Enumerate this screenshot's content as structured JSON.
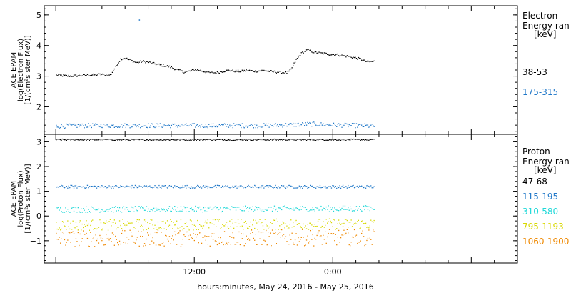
{
  "chart_data": [
    {
      "type": "scatter",
      "title": "",
      "ylabel_lines": [
        "ACE EPAM",
        "log(Electron Flux)",
        "[1/(cm²s ster MeV)]"
      ],
      "ylim": [
        1.1,
        5.3
      ],
      "yticks": [
        2,
        3,
        4,
        5
      ],
      "legend_title": [
        "Electron",
        "Energy ran",
        "[keV]"
      ],
      "series": [
        {
          "name": "38-53",
          "color": "#000000",
          "points": [
            [
              0,
              3.05
            ],
            [
              1,
              3.02
            ],
            [
              2,
              3.03
            ],
            [
              3,
              3.05
            ],
            [
              4,
              3.07
            ],
            [
              4.7,
              3.05
            ],
            [
              5.2,
              3.35
            ],
            [
              5.6,
              3.58
            ],
            [
              6.0,
              3.6
            ],
            [
              6.5,
              3.52
            ],
            [
              7,
              3.45
            ],
            [
              7.5,
              3.5
            ],
            [
              8,
              3.47
            ],
            [
              8.5,
              3.42
            ],
            [
              9,
              3.38
            ],
            [
              9.5,
              3.35
            ],
            [
              10,
              3.3
            ],
            [
              10.5,
              3.22
            ],
            [
              11,
              3.15
            ],
            [
              11.5,
              3.17
            ],
            [
              12,
              3.22
            ],
            [
              12.5,
              3.2
            ],
            [
              13,
              3.15
            ],
            [
              13.5,
              3.12
            ],
            [
              14,
              3.13
            ],
            [
              14.5,
              3.18
            ],
            [
              15,
              3.2
            ],
            [
              15.5,
              3.18
            ],
            [
              16,
              3.17
            ],
            [
              16.5,
              3.2
            ],
            [
              17,
              3.18
            ],
            [
              17.5,
              3.18
            ],
            [
              18,
              3.2
            ],
            [
              18.5,
              3.17
            ],
            [
              19,
              3.15
            ],
            [
              19.5,
              3.14
            ],
            [
              20,
              3.12
            ],
            [
              20.3,
              3.2
            ],
            [
              20.8,
              3.55
            ],
            [
              21.3,
              3.78
            ],
            [
              21.8,
              3.87
            ],
            [
              22.3,
              3.8
            ],
            [
              22.8,
              3.77
            ],
            [
              23.3,
              3.75
            ],
            [
              23.8,
              3.72
            ],
            [
              24.3,
              3.72
            ],
            [
              24.8,
              3.68
            ],
            [
              25.3,
              3.66
            ],
            [
              25.8,
              3.62
            ],
            [
              26.3,
              3.58
            ],
            [
              26.8,
              3.5
            ],
            [
              27.2,
              3.48
            ],
            [
              27.6,
              3.5
            ]
          ],
          "jitter": 0.035
        },
        {
          "name": "175-315",
          "color": "#1f77c8",
          "points": [
            [
              0,
              1.38
            ],
            [
              3,
              1.4
            ],
            [
              6,
              1.4
            ],
            [
              9,
              1.4
            ],
            [
              12,
              1.4
            ],
            [
              15,
              1.4
            ],
            [
              18,
              1.4
            ],
            [
              20,
              1.42
            ],
            [
              22,
              1.45
            ],
            [
              24,
              1.42
            ],
            [
              26,
              1.4
            ],
            [
              27.6,
              1.38
            ]
          ],
          "jitter": 0.07
        }
      ],
      "outliers": [
        {
          "x": 7.2,
          "y": 4.85,
          "series": "175-315"
        }
      ]
    },
    {
      "type": "scatter",
      "title": "",
      "ylabel_lines": [
        "ACE EPAM",
        "log(Proton Flux)",
        "[1/(cm²s ster MeV)]"
      ],
      "ylim": [
        -1.9,
        3.3
      ],
      "yticks": [
        -1,
        0,
        1,
        2,
        3
      ],
      "legend_title": [
        "Proton",
        "Energy ran",
        "[keV]"
      ],
      "series": [
        {
          "name": "47-68",
          "color": "#000000",
          "points": [
            [
              0,
              3.1
            ],
            [
              27.6,
              3.1
            ]
          ],
          "jitter": 0.03
        },
        {
          "name": "115-195",
          "color": "#1f77c8",
          "points": [
            [
              0,
              1.2
            ],
            [
              27.6,
              1.2
            ]
          ],
          "jitter": 0.06
        },
        {
          "name": "310-580",
          "color": "#20d8d8",
          "points": [
            [
              0,
              0.28
            ],
            [
              27.6,
              0.32
            ]
          ],
          "jitter": 0.12
        },
        {
          "name": "795-1193",
          "color": "#d8d800",
          "points": [
            [
              0,
              -0.35
            ],
            [
              27.6,
              -0.3
            ]
          ],
          "jitter": 0.22
        },
        {
          "name": "1060-1900",
          "color": "#ee8800",
          "points": [
            [
              0,
              -0.9
            ],
            [
              27.6,
              -0.85
            ]
          ],
          "jitter": 0.33
        }
      ]
    }
  ],
  "x_axis": {
    "label": "hours:minutes, May 24, 2016 - May 25, 2016",
    "range_hours": [
      -1,
      40
    ],
    "ticks": [
      {
        "hour": 12,
        "label": "12:00"
      },
      {
        "hour": 24,
        "label": "0:00"
      }
    ]
  }
}
